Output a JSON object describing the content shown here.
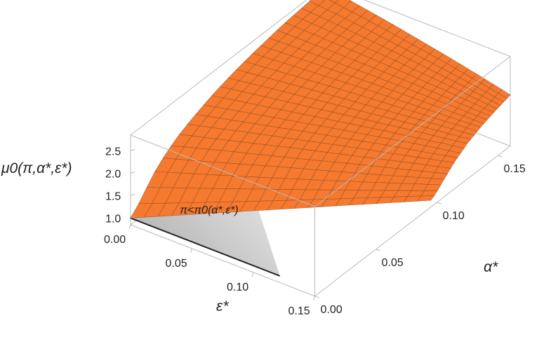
{
  "chart_data": {
    "type": "surface3d",
    "zlabel": "μ0(π,α*,ε*)",
    "xlabel": "ε*",
    "ylabel": "α*",
    "region_label": "π<π0(α*,ε*)",
    "x_ticks": [
      "0.00",
      "0.05",
      "0.10",
      "0.15"
    ],
    "y_ticks": [
      "0.00",
      "0.05",
      "0.10",
      "0.15"
    ],
    "z_ticks": [
      "1.0",
      "1.5",
      "2.0",
      "2.5"
    ],
    "xlim": [
      0,
      0.15
    ],
    "ylim": [
      0,
      0.16
    ],
    "zlim": [
      0.85,
      2.85
    ],
    "surface_color": "#f5792e",
    "mesh_color": "#8a4a25",
    "region_color": "#d0d0d0",
    "surface_edge_profile": {
      "alpha_star": [
        0.0,
        0.005,
        0.01,
        0.02,
        0.03,
        0.04,
        0.05,
        0.06,
        0.07,
        0.08,
        0.09,
        0.1,
        0.11,
        0.12,
        0.13,
        0.14,
        0.15,
        0.16
      ],
      "mu0": [
        1.0,
        1.12,
        1.3,
        1.62,
        1.86,
        2.03,
        2.16,
        2.27,
        2.37,
        2.45,
        2.52,
        2.58,
        2.63,
        2.68,
        2.72,
        2.75,
        2.78,
        2.8
      ]
    }
  },
  "colors": {
    "box": "#b9b9b9",
    "wall_edge": "#222222"
  }
}
